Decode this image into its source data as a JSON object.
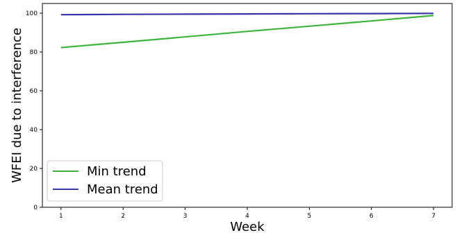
{
  "chart_data": {
    "type": "line",
    "title": "",
    "xlabel": "Week",
    "ylabel": "WFEI due to interference",
    "x": [
      1,
      2,
      3,
      4,
      5,
      6,
      7
    ],
    "xlim": [
      0.7,
      7.3
    ],
    "ylim": [
      0,
      105
    ],
    "xticks": [
      1,
      2,
      3,
      4,
      5,
      6,
      7
    ],
    "yticks": [
      0,
      20,
      40,
      60,
      80,
      100
    ],
    "grid": false,
    "legend_position": "lower-left",
    "series": [
      {
        "name": "Min trend",
        "color": "#3cb43c",
        "values": [
          82.3,
          85.0,
          87.8,
          90.6,
          93.3,
          96.0,
          98.8
        ]
      },
      {
        "name": "Mean trend",
        "color": "#3333aa",
        "values": [
          99.2,
          99.4,
          99.5,
          99.6,
          99.7,
          99.8,
          99.9
        ]
      }
    ]
  }
}
